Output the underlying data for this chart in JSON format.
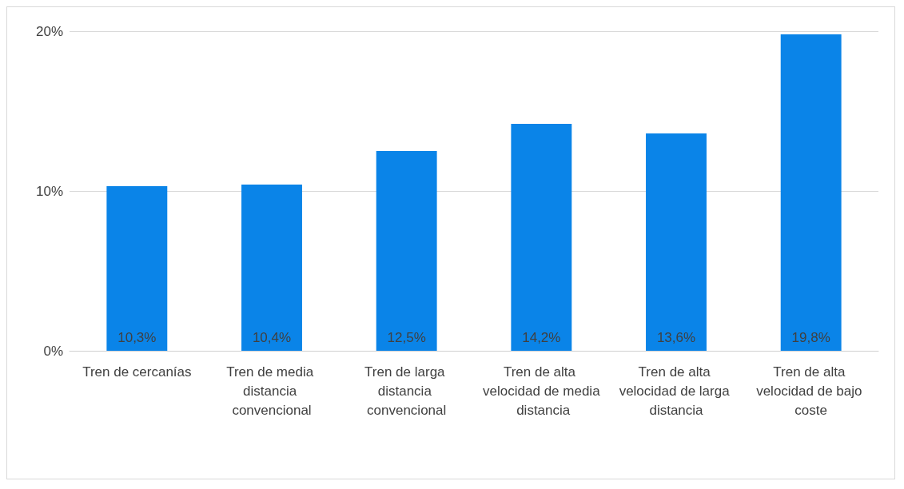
{
  "chart_data": {
    "type": "bar",
    "categories": [
      "Tren de cercanías",
      "Tren de media distancia convencional",
      "Tren de larga distancia convencional",
      "Tren de alta velocidad de media distancia",
      "Tren de alta velocidad de larga distancia",
      "Tren de alta velocidad de bajo coste"
    ],
    "values": [
      10.3,
      10.4,
      12.5,
      14.2,
      13.6,
      19.8
    ],
    "value_labels": [
      "10,3%",
      "10,4%",
      "12,5%",
      "14,2%",
      "13,6%",
      "19,8%"
    ],
    "color": "#0a84e8",
    "ylim": [
      0,
      20
    ],
    "yticks": [
      {
        "value": 0,
        "label": "0%"
      },
      {
        "value": 10,
        "label": "10%"
      },
      {
        "value": 20,
        "label": "20%"
      }
    ],
    "grid": "y"
  }
}
